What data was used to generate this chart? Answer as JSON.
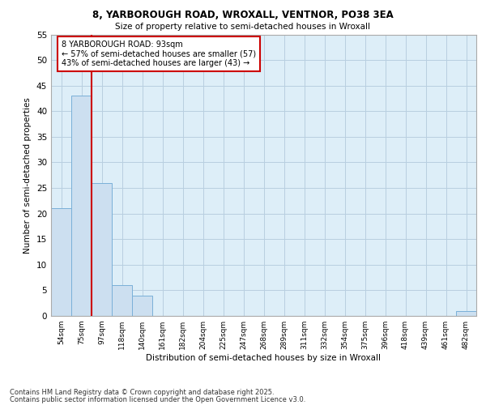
{
  "title1": "8, YARBOROUGH ROAD, WROXALL, VENTNOR, PO38 3EA",
  "title2": "Size of property relative to semi-detached houses in Wroxall",
  "xlabel": "Distribution of semi-detached houses by size in Wroxall",
  "ylabel": "Number of semi-detached properties",
  "bins": [
    "54sqm",
    "75sqm",
    "97sqm",
    "118sqm",
    "140sqm",
    "161sqm",
    "182sqm",
    "204sqm",
    "225sqm",
    "247sqm",
    "268sqm",
    "289sqm",
    "311sqm",
    "332sqm",
    "354sqm",
    "375sqm",
    "396sqm",
    "418sqm",
    "439sqm",
    "461sqm",
    "482sqm"
  ],
  "values": [
    21,
    43,
    26,
    6,
    4,
    0,
    0,
    0,
    0,
    0,
    0,
    0,
    0,
    0,
    0,
    0,
    0,
    0,
    0,
    0,
    1
  ],
  "bar_color": "#ccdff0",
  "bar_edge_color": "#7ab0d8",
  "grid_color": "#b8cfe0",
  "background_color": "#ddeef8",
  "annotation_text": "8 YARBOROUGH ROAD: 93sqm\n← 57% of semi-detached houses are smaller (57)\n43% of semi-detached houses are larger (43) →",
  "annotation_box_color": "#ffffff",
  "annotation_border_color": "#cc0000",
  "redline_color": "#cc0000",
  "redline_x": 2.0,
  "ylim": [
    0,
    55
  ],
  "yticks": [
    0,
    5,
    10,
    15,
    20,
    25,
    30,
    35,
    40,
    45,
    50,
    55
  ],
  "footer1": "Contains HM Land Registry data © Crown copyright and database right 2025.",
  "footer2": "Contains public sector information licensed under the Open Government Licence v3.0."
}
